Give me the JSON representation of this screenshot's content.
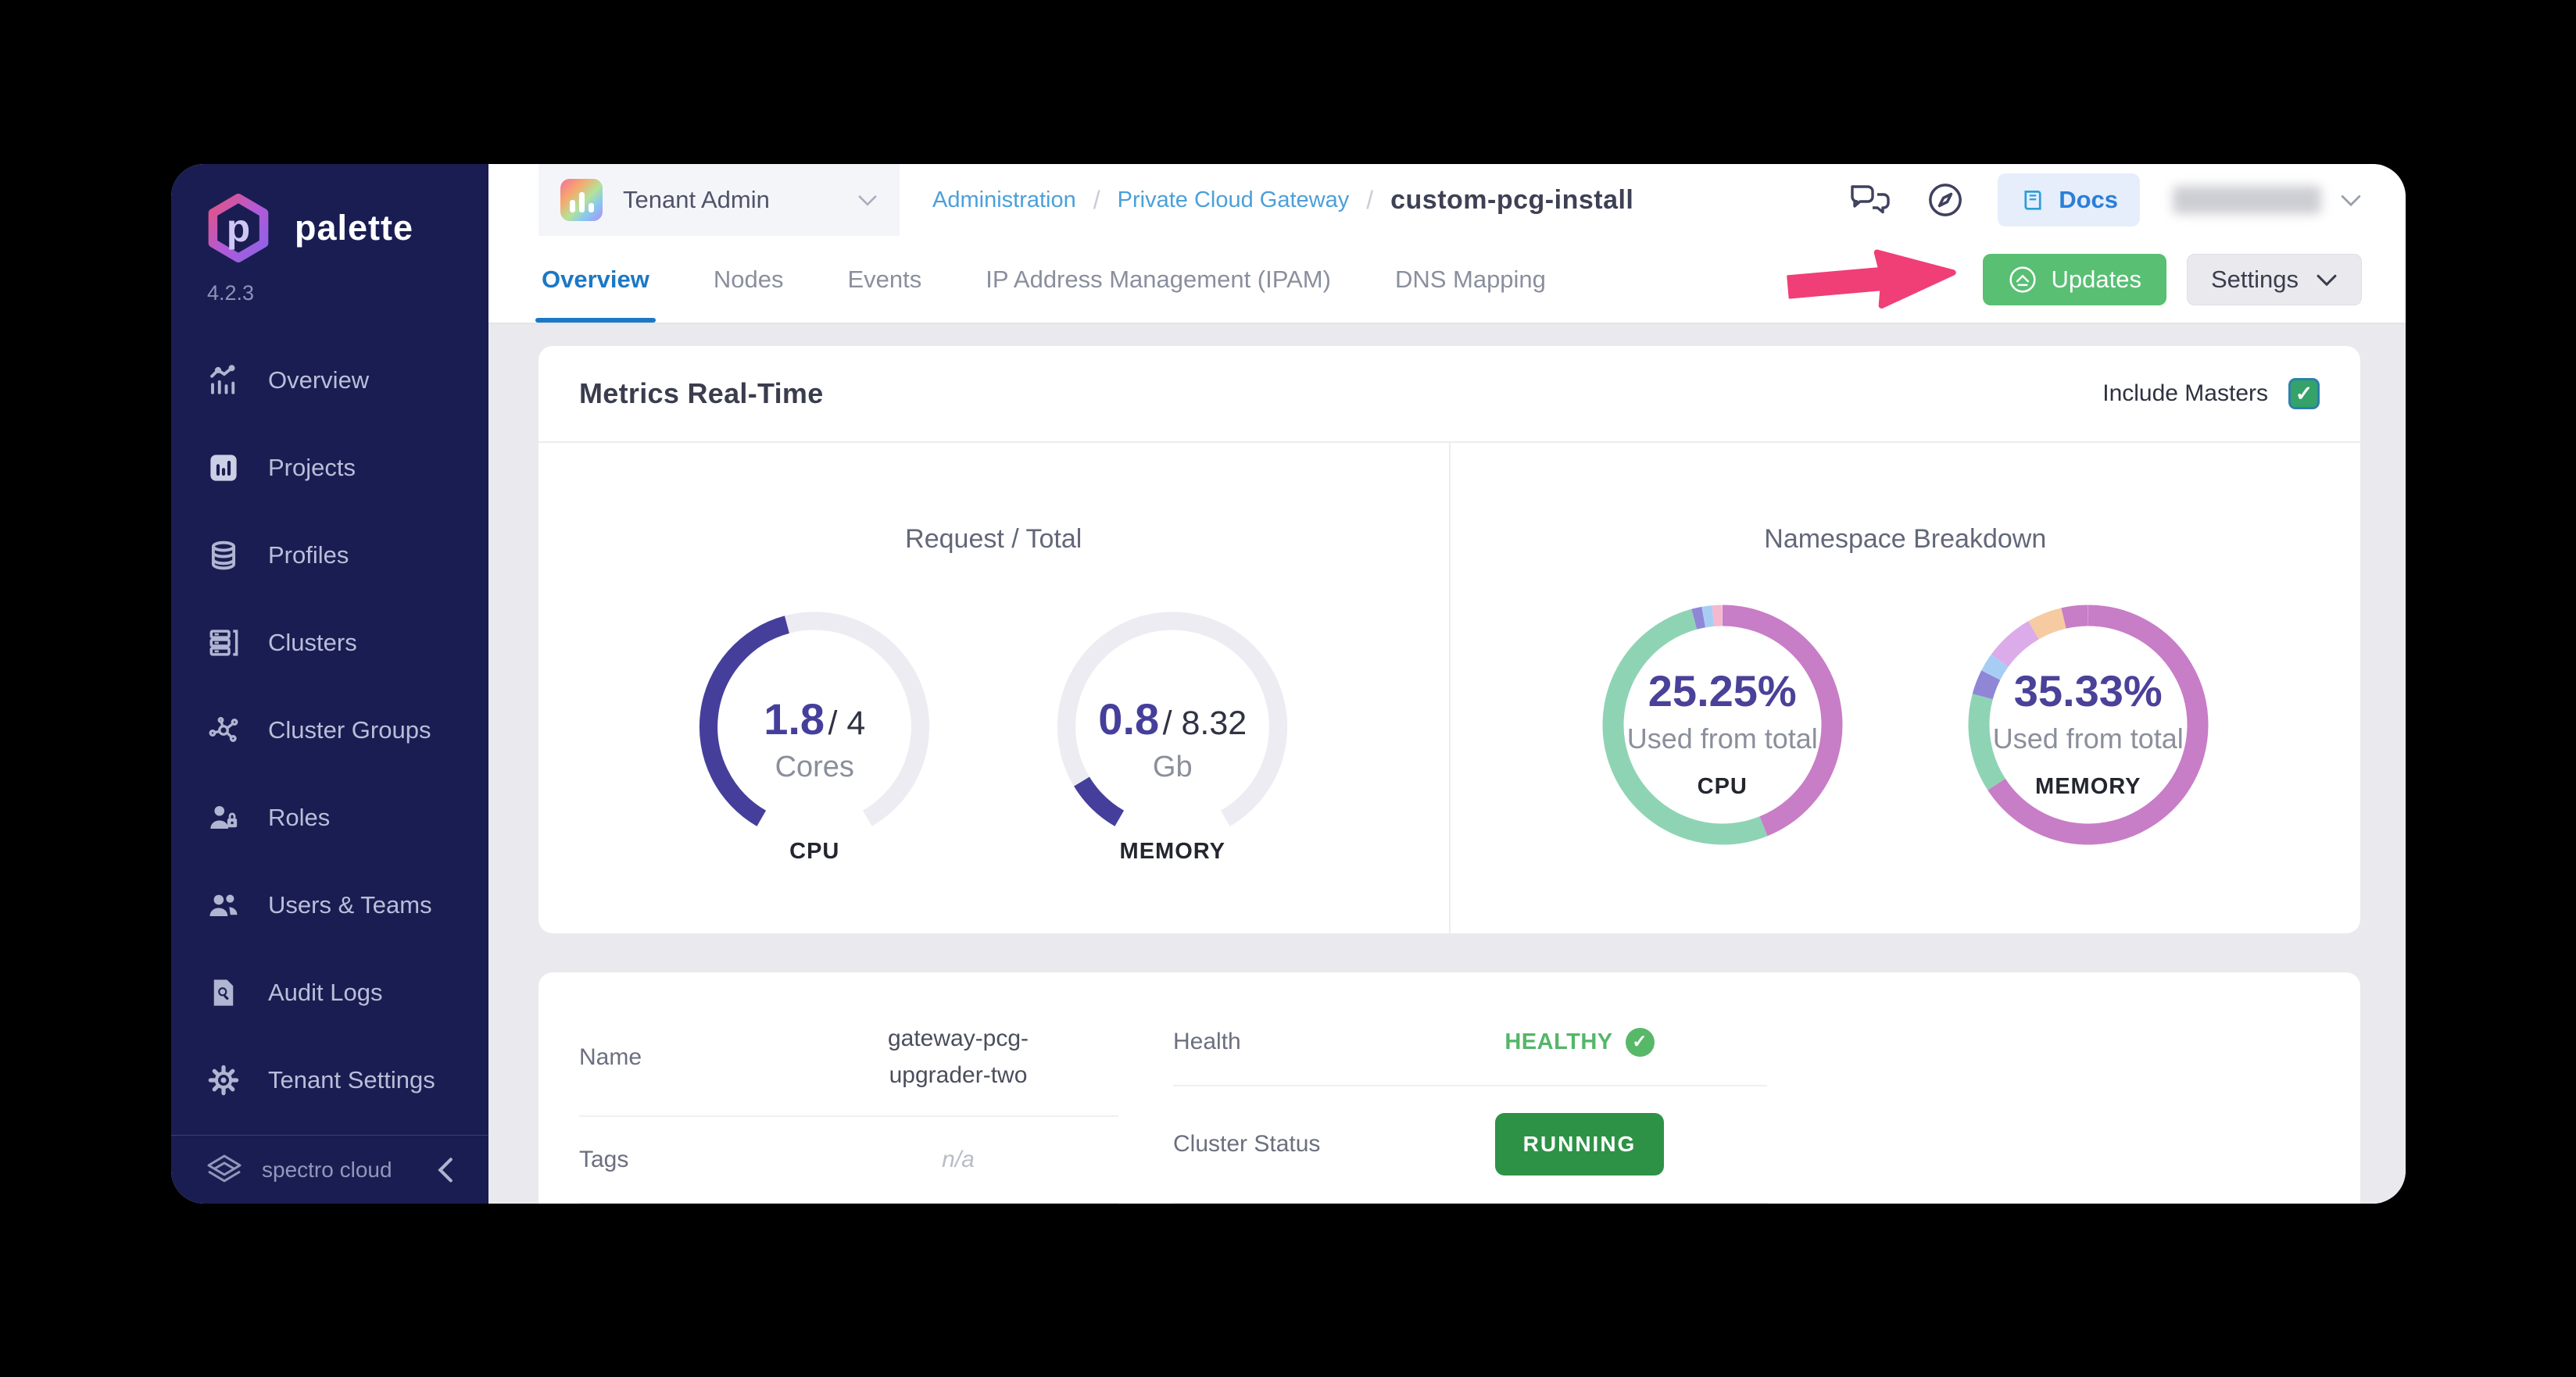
{
  "app": {
    "name": "palette",
    "version": "4.2.3",
    "brand": "spectro cloud"
  },
  "glyphs": {
    "check": "✓"
  },
  "sidebar": {
    "items": [
      {
        "label": "Overview",
        "icon": "chart-line-bars"
      },
      {
        "label": "Projects",
        "icon": "bar-chart-square"
      },
      {
        "label": "Profiles",
        "icon": "layers-database"
      },
      {
        "label": "Clusters",
        "icon": "server-stack"
      },
      {
        "label": "Cluster Groups",
        "icon": "node-graph"
      },
      {
        "label": "Roles",
        "icon": "user-lock"
      },
      {
        "label": "Users & Teams",
        "icon": "users"
      },
      {
        "label": "Audit Logs",
        "icon": "doc-search"
      },
      {
        "label": "Tenant Settings",
        "icon": "gear"
      }
    ]
  },
  "header": {
    "scope": {
      "label": "Tenant Admin"
    },
    "breadcrumb": {
      "links": [
        "Administration",
        "Private Cloud Gateway"
      ],
      "current": "custom-pcg-install",
      "separator": "/"
    },
    "docs_label": "Docs",
    "user_label_blurred": true
  },
  "tabs": {
    "items": [
      "Overview",
      "Nodes",
      "Events",
      "IP Address Management (IPAM)",
      "DNS Mapping"
    ],
    "active": "Overview"
  },
  "toolbar": {
    "updates_label": "Updates",
    "settings_label": "Settings"
  },
  "annotation": {
    "type": "arrow",
    "color": "#f03e76",
    "points_at": "Updates button"
  },
  "metrics": {
    "title": "Metrics Real-Time",
    "include_masters": {
      "label": "Include Masters",
      "checked": true
    },
    "left_title": "Request / Total",
    "right_title": "Namespace Breakdown"
  },
  "chart_data": [
    {
      "type": "gauge",
      "id": "cpu-gauge",
      "label": "CPU",
      "value": 1.8,
      "total": 4,
      "value_display": "1.8",
      "total_display": "/ 4",
      "unit": "Cores",
      "arc_span_deg": 300,
      "color": "#453f9b",
      "track_color": "#ececf2"
    },
    {
      "type": "gauge",
      "id": "memory-gauge",
      "label": "MEMORY",
      "value": 0.8,
      "total": 8.32,
      "value_display": "0.8",
      "total_display": "/ 8.32",
      "unit": "Gb",
      "arc_span_deg": 300,
      "color": "#453f9b",
      "track_color": "#ececf2"
    },
    {
      "type": "donut",
      "id": "cpu-donut",
      "label": "CPU",
      "percent": 25.25,
      "percent_display": "25.25%",
      "sublabel": "Used from total",
      "segments": [
        {
          "color": "#c87dc7",
          "deg": 158
        },
        {
          "color": "#8fd3b5",
          "deg": 187
        },
        {
          "color": "#8f86d6",
          "deg": 5
        },
        {
          "color": "#a8cdf4",
          "deg": 5
        },
        {
          "color": "#f4b9ce",
          "deg": 5
        }
      ]
    },
    {
      "type": "donut",
      "id": "memory-donut",
      "label": "MEMORY",
      "percent": 35.33,
      "percent_display": "35.33%",
      "sublabel": "Used from total",
      "segments": [
        {
          "color": "#c87dc7",
          "deg": 237
        },
        {
          "color": "#8fd3b5",
          "deg": 48
        },
        {
          "color": "#8f86d6",
          "deg": 12
        },
        {
          "color": "#a8cdf4",
          "deg": 9
        },
        {
          "color": "#dcabe9",
          "deg": 24
        },
        {
          "color": "#f6cba1",
          "deg": 17
        },
        {
          "color": "#c87dc7",
          "deg": 13
        }
      ]
    }
  ],
  "details": {
    "left": [
      {
        "label": "Name",
        "value": "gateway-pcg-upgrader-two"
      },
      {
        "label": "Tags",
        "value": "n/a"
      }
    ],
    "right": [
      {
        "label": "Health",
        "value": "HEALTHY"
      },
      {
        "label": "Cluster Status",
        "value": "RUNNING"
      }
    ]
  },
  "colors": {
    "sidebar_bg": "#1a1d51",
    "accent_blue": "#1c78c5",
    "link_blue": "#4ba0d9",
    "updates_green": "#58bf73",
    "badge_green": "#2d9246",
    "healthy_green": "#54b669",
    "gauge_purple": "#453f9b",
    "donut_magenta": "#c87dc7",
    "donut_teal": "#8fd3b5",
    "annotation_pink": "#f03e76",
    "content_bg": "#e9e9ee"
  }
}
